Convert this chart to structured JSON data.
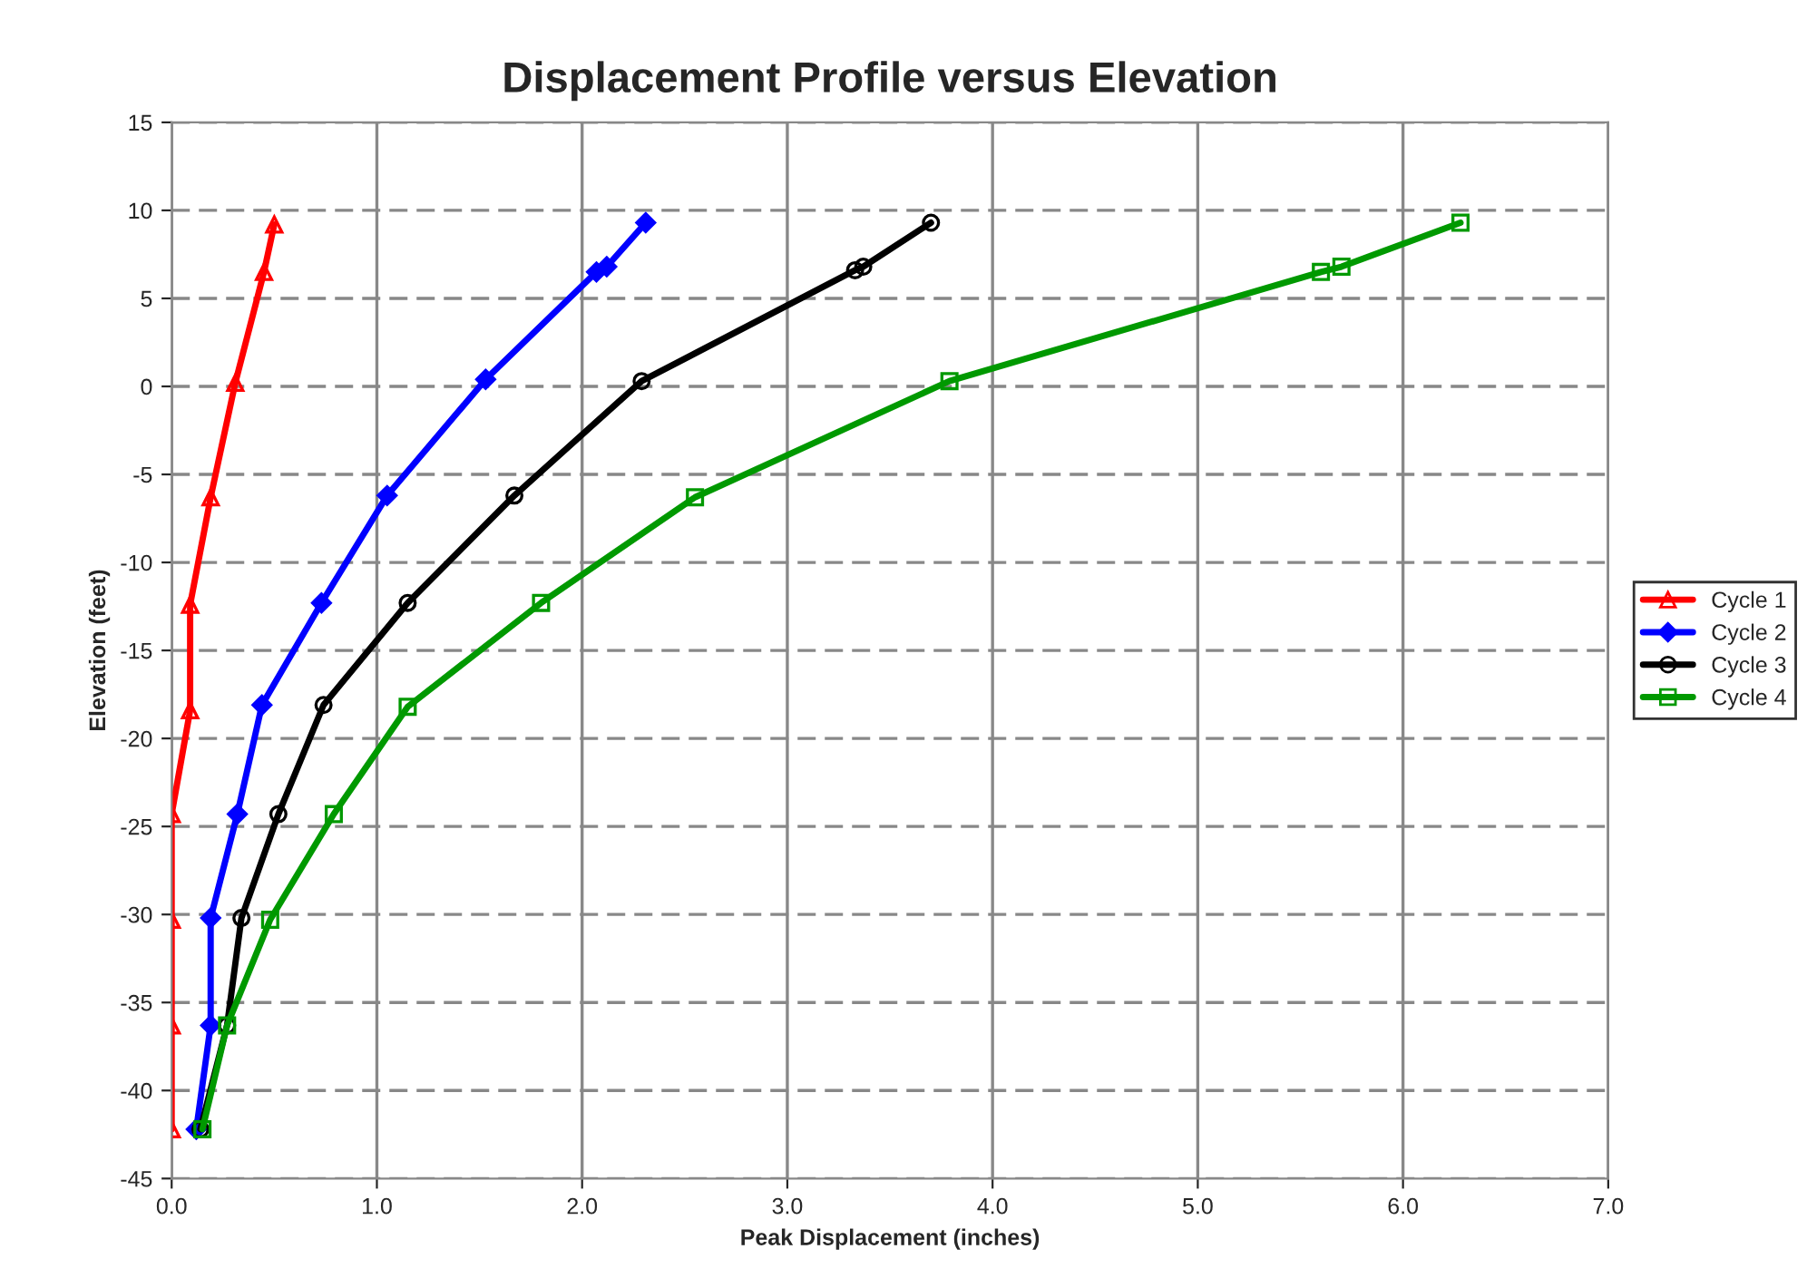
{
  "chart_data": {
    "type": "line",
    "title": "Displacement Profile versus Elevation",
    "xlabel": "Peak Displacement (inches)",
    "ylabel": "Elevation (feet)",
    "xlim": [
      0,
      7
    ],
    "xticks": [
      {
        "value": 0,
        "label": "0.0"
      },
      {
        "value": 1,
        "label": "1.0"
      },
      {
        "value": 2,
        "label": "2.0"
      },
      {
        "value": 3,
        "label": "3.0"
      },
      {
        "value": 4,
        "label": "4.0"
      },
      {
        "value": 5,
        "label": "5.0"
      },
      {
        "value": 6,
        "label": "6.0"
      },
      {
        "value": 7,
        "label": "7.0"
      }
    ],
    "ylim": [
      -45,
      15
    ],
    "yticks": [
      15,
      10,
      5,
      0,
      -5,
      -10,
      -15,
      -20,
      -25,
      -30,
      -35,
      -40,
      -45
    ],
    "grid": true,
    "legend": "right",
    "line_style": "solid",
    "series": [
      {
        "name": "Cycle 1",
        "color": "#ff0000",
        "marker": "triangle",
        "x": [
          0.5,
          0.45,
          0.31,
          0.19,
          0.09,
          0.09,
          0,
          0,
          0,
          0
        ],
        "values": [
          9.2,
          6.5,
          0.2,
          -6.3,
          -12.4,
          -18.4,
          -24.3,
          -30.3,
          -36.3,
          -42.2
        ]
      },
      {
        "name": "Cycle 2",
        "color": "#0000ff",
        "marker": "diamond",
        "x": [
          2.31,
          2.12,
          2.07,
          1.53,
          1.05,
          0.73,
          0.44,
          0.32,
          0.19,
          0.19,
          0.12
        ],
        "values": [
          9.3,
          6.8,
          6.5,
          0.4,
          -6.2,
          -12.3,
          -18.1,
          -24.3,
          -30.2,
          -36.3,
          -42.2
        ]
      },
      {
        "name": "Cycle 3",
        "color": "#000000",
        "marker": "circle",
        "x": [
          3.7,
          3.37,
          3.33,
          2.29,
          1.67,
          1.15,
          0.74,
          0.52,
          0.34,
          0.27,
          0.14
        ],
        "values": [
          9.3,
          6.8,
          6.6,
          0.3,
          -6.2,
          -12.3,
          -18.1,
          -24.3,
          -30.2,
          -36.3,
          -42.2
        ]
      },
      {
        "name": "Cycle 4",
        "color": "#009900",
        "marker": "square",
        "x": [
          6.28,
          5.7,
          5.6,
          3.79,
          2.55,
          1.8,
          1.15,
          0.79,
          0.48,
          0.27,
          0.15
        ],
        "values": [
          9.3,
          6.8,
          6.5,
          0.3,
          -6.3,
          -12.3,
          -18.2,
          -24.3,
          -30.3,
          -36.3,
          -42.2
        ]
      }
    ]
  }
}
